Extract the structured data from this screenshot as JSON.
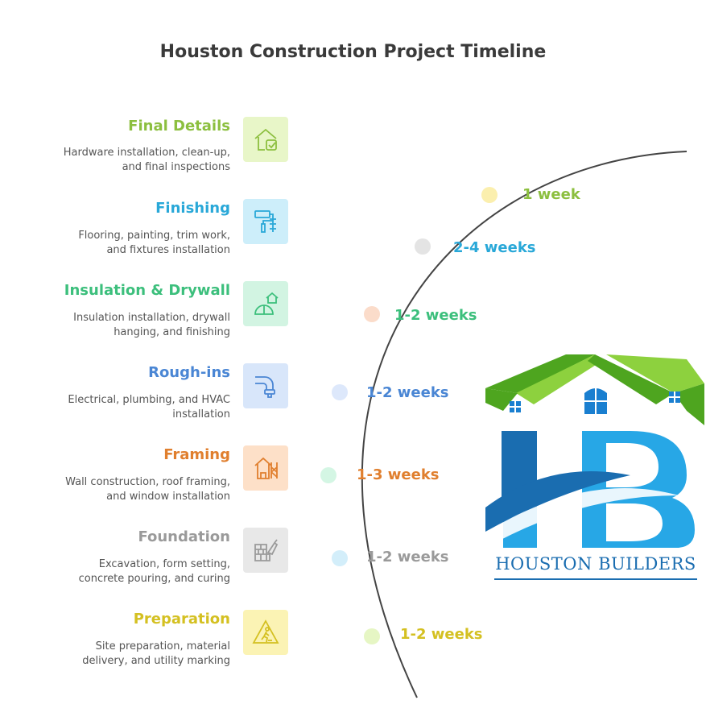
{
  "title": "Houston Construction Project Timeline",
  "stages": [
    {
      "name": "Final Details",
      "description_line1": "Hardware installation, clean-up,",
      "description_line2": "and final inspections",
      "duration": "1 week",
      "color": "#8cbf3f",
      "icon_bg": "#e8f6c8",
      "dot": "#fbefae",
      "icon": "house-check-icon"
    },
    {
      "name": "Finishing",
      "description_line1": "Flooring, painting, trim work,",
      "description_line2": "and fixtures installation",
      "duration": "2-4 weeks",
      "color": "#29a8d8",
      "icon_bg": "#cdeefa",
      "dot": "#e4e4e4",
      "icon": "paint-roller-icon"
    },
    {
      "name": "Insulation & Drywall",
      "description_line1": "Insulation installation, drywall",
      "description_line2": "hanging, and finishing",
      "duration": "1-2 weeks",
      "color": "#3cbf7c",
      "icon_bg": "#d2f4e2",
      "dot": "#fbdcca",
      "icon": "helmet-house-icon"
    },
    {
      "name": "Rough-ins",
      "description_line1": "Electrical, plumbing, and HVAC",
      "description_line2": "installation",
      "duration": "1-2 weeks",
      "color": "#4a86d4",
      "icon_bg": "#d8e6fa",
      "dot": "#dde8fb",
      "icon": "pipe-icon"
    },
    {
      "name": "Framing",
      "description_line1": "Wall construction, roof framing,",
      "description_line2": "and window installation",
      "duration": "1-3 weeks",
      "color": "#e07f2e",
      "icon_bg": "#fde0c8",
      "dot": "#d4f6e4",
      "icon": "scaffold-house-icon"
    },
    {
      "name": "Foundation",
      "description_line1": "Excavation, form setting,",
      "description_line2": "concrete pouring, and curing",
      "duration": "1-2 weeks",
      "color": "#9a9a9a",
      "icon_bg": "#e8e8e8",
      "dot": "#d3eefa",
      "icon": "brick-trowel-icon"
    },
    {
      "name": "Preparation",
      "description_line1": "Site preparation, material",
      "description_line2": "delivery, and utility marking",
      "duration": "1-2 weeks",
      "color": "#d4c021",
      "icon_bg": "#fbf3b4",
      "dot": "#e6f6c4",
      "icon": "worker-sign-icon"
    }
  ],
  "logo": {
    "text": "HOUSTON BUILDERS",
    "roof_color": "#6bbf2a",
    "letter_color": "#1a7fd0"
  }
}
